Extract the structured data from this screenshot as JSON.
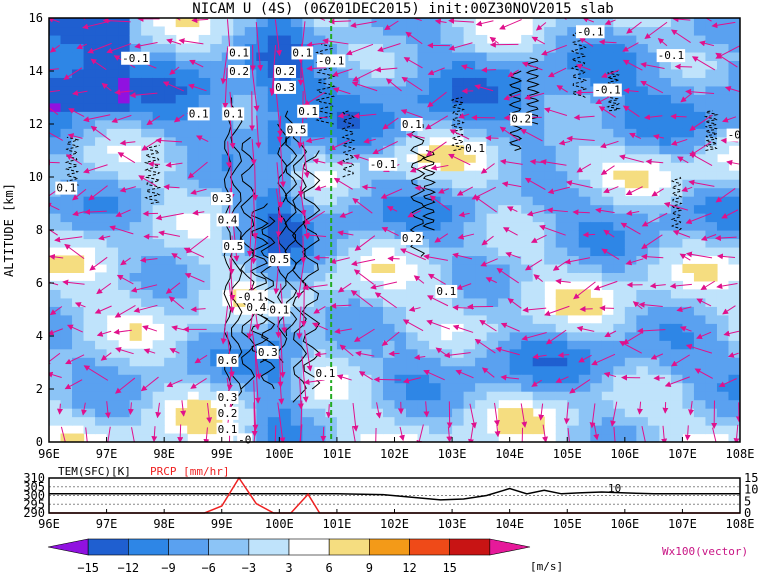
{
  "chart_data": [
    {
      "type": "heatmap",
      "title": "NICAM U (4S) (06Z01DEC2015) init:00Z30NOV2015 slab",
      "ylabel": "ALTITUDE [km]",
      "xlim": [
        96,
        108
      ],
      "ylim": [
        0,
        16
      ],
      "x_ticks": [
        "96E",
        "97E",
        "98E",
        "99E",
        "100E",
        "101E",
        "102E",
        "103E",
        "104E",
        "105E",
        "106E",
        "107E",
        "108E"
      ],
      "y_ticks": [
        "0",
        "2",
        "4",
        "6",
        "8",
        "10",
        "12",
        "14",
        "16"
      ],
      "reference_line_x": 100.9,
      "contour_labels": [
        {
          "text": "-0.1",
          "x": 97.5,
          "y": 14.5
        },
        {
          "text": "0.1",
          "x": 99.3,
          "y": 14.7
        },
        {
          "text": "0.2",
          "x": 99.3,
          "y": 14.0
        },
        {
          "text": "0.1",
          "x": 100.4,
          "y": 14.7
        },
        {
          "text": "0.2",
          "x": 100.1,
          "y": 14.0
        },
        {
          "text": "0.3",
          "x": 100.1,
          "y": 13.4
        },
        {
          "text": "-0.1",
          "x": 100.9,
          "y": 14.4
        },
        {
          "text": "0.1",
          "x": 100.5,
          "y": 12.5
        },
        {
          "text": "0.5",
          "x": 100.3,
          "y": 11.8
        },
        {
          "text": "0.1",
          "x": 98.6,
          "y": 12.4
        },
        {
          "text": "0.1",
          "x": 99.2,
          "y": 12.4
        },
        {
          "text": "0.1",
          "x": 102.3,
          "y": 12.0
        },
        {
          "text": "0.1",
          "x": 103.4,
          "y": 11.1
        },
        {
          "text": "-0.1",
          "x": 101.8,
          "y": 10.5
        },
        {
          "text": "0.2",
          "x": 104.2,
          "y": 12.2
        },
        {
          "text": "-0.1",
          "x": 105.4,
          "y": 15.5
        },
        {
          "text": "-0.1",
          "x": 105.7,
          "y": 13.3
        },
        {
          "text": "-0.1",
          "x": 106.8,
          "y": 14.6
        },
        {
          "text": "-0",
          "x": 107.9,
          "y": 11.6
        },
        {
          "text": "0.1",
          "x": 96.3,
          "y": 9.6
        },
        {
          "text": "0.3",
          "x": 99.0,
          "y": 9.2
        },
        {
          "text": "0.4",
          "x": 99.1,
          "y": 8.4
        },
        {
          "text": "0.5",
          "x": 99.2,
          "y": 7.4
        },
        {
          "text": "0.2",
          "x": 102.3,
          "y": 7.7
        },
        {
          "text": "0.5",
          "x": 100.0,
          "y": 6.9
        },
        {
          "text": "0.1",
          "x": 102.9,
          "y": 5.7
        },
        {
          "text": "-0.1",
          "x": 99.5,
          "y": 5.5
        },
        {
          "text": "0.4",
          "x": 99.6,
          "y": 5.1
        },
        {
          "text": "0.1",
          "x": 100.0,
          "y": 5.0
        },
        {
          "text": "0.3",
          "x": 99.8,
          "y": 3.4
        },
        {
          "text": "0.6",
          "x": 99.1,
          "y": 3.1
        },
        {
          "text": "0.1",
          "x": 100.8,
          "y": 2.6
        },
        {
          "text": "0.3",
          "x": 99.1,
          "y": 1.7
        },
        {
          "text": "0.2",
          "x": 99.1,
          "y": 1.1
        },
        {
          "text": "0.1",
          "x": 99.1,
          "y": 0.5
        },
        {
          "text": "-0",
          "x": 99.4,
          "y": 0.1
        }
      ]
    },
    {
      "type": "line",
      "series": [
        {
          "name": "TEM(SFC)[K]",
          "color": "#000000",
          "x": [
            96,
            97,
            98,
            99,
            100,
            101,
            101.8,
            102.3,
            102.8,
            103.2,
            103.6,
            103.9,
            104.0,
            104.3,
            104.6,
            104.9,
            105.2,
            105.6,
            106,
            106.5,
            107,
            108
          ],
          "values": [
            301,
            301,
            301,
            301,
            301,
            301,
            300.5,
            299,
            297.5,
            298,
            300,
            303,
            304,
            301,
            303,
            301,
            301.5,
            302,
            301.5,
            301,
            301,
            301
          ]
        },
        {
          "name": "PRCP [mm/hr]",
          "color": "#ee2222",
          "x": [
            96,
            98,
            98.7,
            99.0,
            99.3,
            99.6,
            99.9,
            100.2,
            100.5,
            100.7,
            100.9,
            101.5,
            108
          ],
          "values": [
            0,
            0,
            0,
            3,
            15,
            4,
            0,
            0,
            8,
            0,
            0,
            0,
            0
          ]
        }
      ],
      "left_axis_ticks": [
        "290",
        "295",
        "300",
        "305",
        "310"
      ],
      "right_axis_ticks": [
        "0",
        "5",
        "10",
        "15"
      ],
      "inline_label": "10"
    }
  ],
  "colorbar": {
    "labels": [
      "−15",
      "−12",
      "−9",
      "−6",
      "−3",
      "3",
      "6",
      "9",
      "12",
      "15"
    ],
    "unit": "[m/s]",
    "colors": [
      "#9012e0",
      "#1f5fd0",
      "#2e86e6",
      "#5aa1f0",
      "#8cc4f6",
      "#bfe3fb",
      "#ffffff",
      "#f5dd80",
      "#f39a18",
      "#ef4a18",
      "#c81414",
      "#e6199a"
    ]
  },
  "vector_label": "Wx100(vector)",
  "colors": {
    "vector": "#e0118c",
    "ref_line": "#22aa22",
    "prcp": "#ee2222"
  }
}
